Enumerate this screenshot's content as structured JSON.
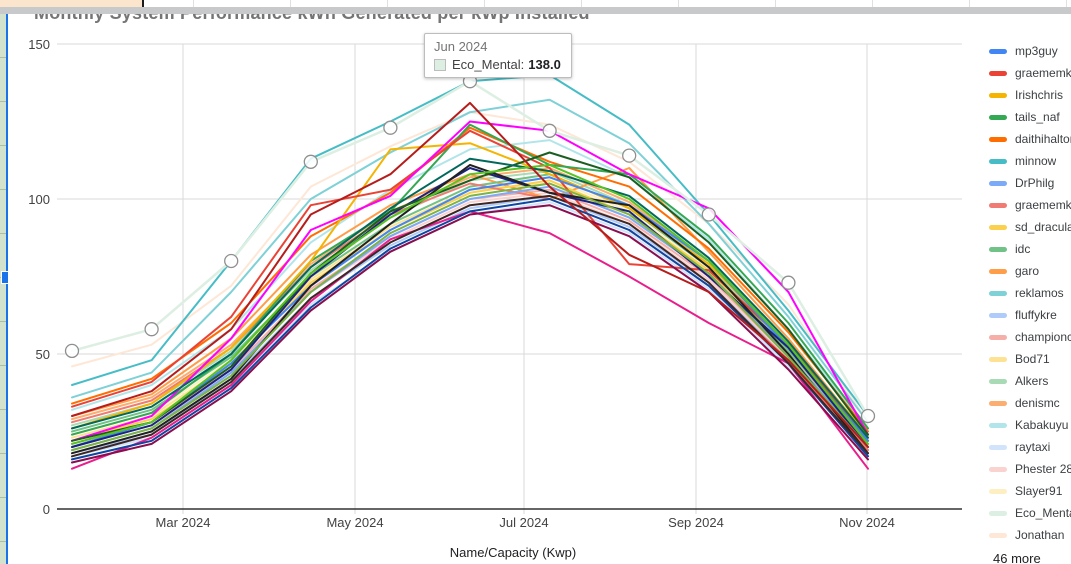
{
  "window": {
    "clipped_note": "chart embedded in spreadsheet, edges cropped"
  },
  "chart": {
    "title": "Monthly System Performance kWh Generated per kWp Installed",
    "x_axis": {
      "title": "Name/Capacity (Kwp)",
      "ticks": [
        "Mar 2024",
        "May 2024",
        "Jul 2024",
        "Sep 2024",
        "Nov 2024"
      ]
    },
    "y_axis": {
      "ticks": [
        "150",
        "100",
        "50",
        "0"
      ]
    },
    "legend_more_label": "46 more",
    "tooltip": {
      "date": "Jun 2024",
      "series": "Eco_Mental:",
      "value": "138.0",
      "swatch_color": "#dcefe2"
    }
  },
  "chart_data": {
    "type": "line",
    "title": "Monthly System Performance kWh Generated per kWp Installed",
    "xlabel": "Name/Capacity (Kwp)",
    "ylabel": "",
    "ylim": [
      0,
      150
    ],
    "grid": true,
    "legend_position": "right",
    "highlighted_series": "Eco_Mental",
    "highlighted_point": {
      "x": "Jun 2024",
      "series": "Eco_Mental",
      "value": 138.0
    },
    "x": [
      "Jan 2024",
      "Feb 2024",
      "Mar 2024",
      "Apr 2024",
      "May 2024",
      "Jun 2024",
      "Jul 2024",
      "Aug 2024",
      "Sep 2024",
      "Oct 2024",
      "Nov 2024"
    ],
    "series": [
      {
        "name": "mp3guy",
        "color": "#4285f4",
        "values": [
          20,
          28,
          47,
          72,
          90,
          103,
          107,
          98,
          80,
          52,
          22
        ]
      },
      {
        "name": "graememk",
        "color": "#ea4335",
        "values": [
          33,
          41,
          62,
          98,
          103,
          122,
          110,
          79,
          77,
          53,
          22
        ]
      },
      {
        "name": "Irishchris",
        "color": "#f4b400",
        "values": [
          26,
          34,
          52,
          80,
          116,
          118,
          108,
          97,
          79,
          53,
          24
        ]
      },
      {
        "name": "tails_naf",
        "color": "#34a853",
        "values": [
          24,
          31,
          50,
          80,
          96,
          124,
          111,
          108,
          88,
          60,
          26
        ]
      },
      {
        "name": "daithihalton",
        "color": "#ff6d01",
        "values": [
          34,
          42,
          60,
          88,
          102,
          123,
          112,
          104,
          84,
          57,
          25
        ]
      },
      {
        "name": "minnow",
        "color": "#46bdc6",
        "values": [
          40,
          48,
          80,
          113,
          125,
          138,
          140,
          124,
          95,
          64,
          30
        ]
      },
      {
        "name": "DrPhilg",
        "color": "#7baaf7",
        "values": [
          19,
          26,
          44,
          70,
          88,
          100,
          104,
          94,
          76,
          50,
          20
        ]
      },
      {
        "name": "graememk (.",
        "color": "#f07b72",
        "values": [
          28,
          35,
          52,
          78,
          95,
          105,
          100,
          90,
          72,
          48,
          19
        ]
      },
      {
        "name": "sd_dracula",
        "color": "#fcd04f",
        "values": [
          22,
          29,
          46,
          73,
          90,
          102,
          106,
          95,
          77,
          50,
          21
        ]
      },
      {
        "name": "idc",
        "color": "#71c287",
        "values": [
          25,
          32,
          49,
          75,
          92,
          104,
          108,
          97,
          78,
          51,
          22
        ]
      },
      {
        "name": "garo",
        "color": "#ff9d48",
        "values": [
          30,
          37,
          55,
          82,
          98,
          108,
          100,
          110,
          83,
          55,
          23
        ]
      },
      {
        "name": "reklamos",
        "color": "#7ed1d7",
        "values": [
          36,
          44,
          70,
          100,
          115,
          128,
          132,
          118,
          92,
          62,
          28
        ]
      },
      {
        "name": "fluffykre",
        "color": "#aecbfa",
        "values": [
          18,
          24,
          42,
          68,
          85,
          97,
          101,
          91,
          73,
          48,
          19
        ]
      },
      {
        "name": "championc",
        "color": "#f6aea9",
        "values": [
          21,
          28,
          45,
          71,
          88,
          100,
          103,
          93,
          75,
          49,
          20
        ]
      },
      {
        "name": "Bod71",
        "color": "#fde293",
        "values": [
          23,
          30,
          47,
          74,
          91,
          103,
          105,
          94,
          76,
          50,
          21
        ]
      },
      {
        "name": "Alkers",
        "color": "#a8dab5",
        "values": [
          27,
          34,
          51,
          77,
          94,
          106,
          109,
          98,
          79,
          52,
          22
        ]
      },
      {
        "name": "denismc",
        "color": "#fcad70",
        "values": [
          29,
          36,
          53,
          79,
          96,
          107,
          110,
          99,
          80,
          53,
          23
        ]
      },
      {
        "name": "Kabakuyu",
        "color": "#b2e5e9",
        "values": [
          32,
          40,
          58,
          86,
          103,
          116,
          119,
          107,
          87,
          58,
          26
        ]
      },
      {
        "name": "raytaxi",
        "color": "#d2e3fc",
        "values": [
          17,
          23,
          40,
          66,
          83,
          95,
          99,
          89,
          71,
          46,
          18
        ]
      },
      {
        "name": "Phester 28",
        "color": "#fad2cf",
        "values": [
          20,
          27,
          44,
          70,
          87,
          99,
          102,
          92,
          74,
          48,
          19
        ]
      },
      {
        "name": "Slayer91",
        "color": "#feefc3",
        "values": [
          24,
          31,
          48,
          75,
          92,
          104,
          107,
          96,
          77,
          51,
          21
        ]
      },
      {
        "name": "Eco_Mental",
        "color": "#dcefe2",
        "values": [
          51,
          58,
          80,
          112,
          123,
          138,
          122,
          114,
          95,
          73,
          30
        ]
      },
      {
        "name": "Jonathan",
        "color": "#fee7d6",
        "values": [
          46,
          53,
          72,
          104,
          117,
          128,
          124,
          112,
          92,
          66,
          28
        ]
      }
    ],
    "unnamed_visible_series": [
      {
        "color": "#ff00ff",
        "values": [
          22,
          30,
          55,
          90,
          101,
          125,
          122,
          108,
          97,
          70,
          24
        ]
      },
      {
        "color": "#e91e8c",
        "values": [
          13,
          23,
          40,
          67,
          87,
          96,
          89,
          75,
          60,
          47,
          13
        ]
      },
      {
        "color": "#1a237e",
        "values": [
          20,
          27,
          45,
          75,
          95,
          110,
          102,
          96,
          75,
          52,
          20
        ]
      },
      {
        "color": "#212121",
        "values": [
          18,
          25,
          42,
          72,
          92,
          111,
          102,
          98,
          78,
          50,
          18
        ]
      },
      {
        "color": "#1b5e20",
        "values": [
          22,
          28,
          46,
          76,
          96,
          106,
          115,
          107,
          86,
          58,
          24
        ]
      },
      {
        "color": "#00695c",
        "values": [
          26,
          33,
          50,
          78,
          97,
          113,
          109,
          101,
          81,
          54,
          23
        ]
      },
      {
        "color": "#58c322",
        "values": [
          21,
          28,
          48,
          76,
          94,
          108,
          111,
          100,
          80,
          53,
          21
        ]
      },
      {
        "color": "#7cb342",
        "values": [
          19,
          26,
          43,
          70,
          89,
          101,
          105,
          95,
          76,
          49,
          20
        ]
      },
      {
        "color": "#0d47a1",
        "values": [
          16,
          22,
          39,
          65,
          84,
          96,
          100,
          90,
          72,
          47,
          17
        ]
      },
      {
        "color": "#880e4f",
        "values": [
          15,
          21,
          38,
          64,
          83,
          95,
          98,
          88,
          70,
          45,
          16
        ]
      },
      {
        "color": "#3e2723",
        "values": [
          17,
          24,
          41,
          68,
          86,
          98,
          101,
          92,
          73,
          47,
          18
        ]
      },
      {
        "color": "#b71c1c",
        "values": [
          30,
          38,
          58,
          95,
          108,
          131,
          104,
          82,
          70,
          48,
          20
        ]
      }
    ]
  }
}
